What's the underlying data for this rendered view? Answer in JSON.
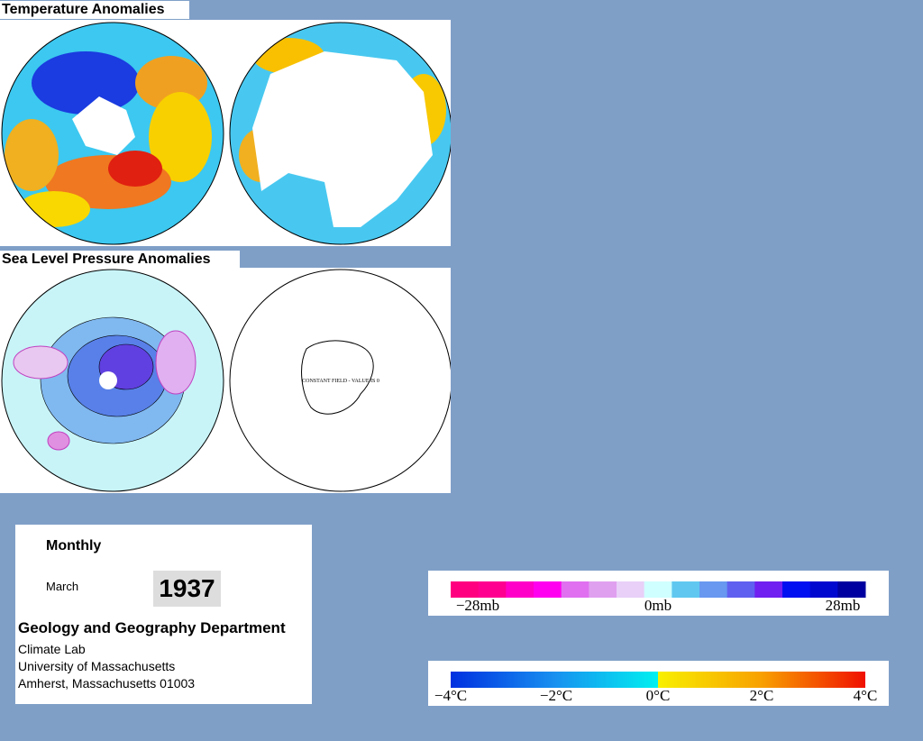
{
  "header": {
    "temperature_title": "Temperature Anomalies",
    "pressure_title": "Sea Level Pressure Anomalies"
  },
  "map_note": "CONSTANT FIELD - VALUE IS 0",
  "info": {
    "period": "Monthly",
    "month": "March",
    "year": "1937",
    "department": "Geology and Geography Department",
    "lab": "Climate Lab",
    "university": "University of Massachusetts",
    "address": "Amherst, Massachusetts 01003"
  },
  "pressure_legend": {
    "labels": [
      "−28mb",
      "0mb",
      "28mb"
    ]
  },
  "temperature_legend": {
    "labels": [
      "−4°C",
      "−2°C",
      "0°C",
      "2°C",
      "4°C"
    ]
  }
}
